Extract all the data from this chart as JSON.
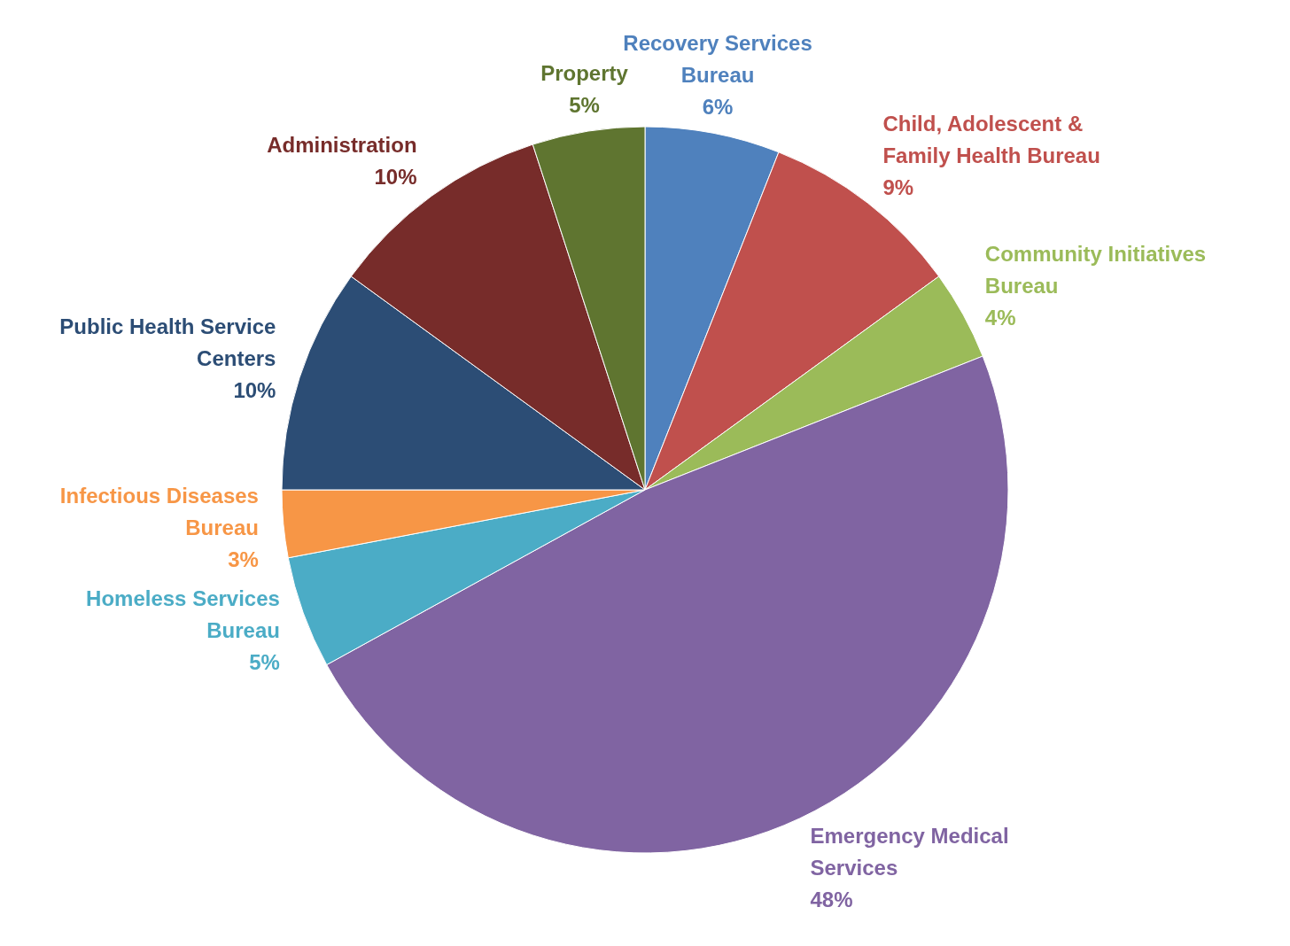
{
  "chart_data": {
    "type": "pie",
    "categories": [
      "Recovery Services Bureau",
      "Child, Adolescent & Family Health Bureau",
      "Community Initiatives Bureau",
      "Emergency Medical Services",
      "Homeless Services Bureau",
      "Infectious Diseases Bureau",
      "Public Health Service Centers",
      "Administration",
      "Property"
    ],
    "values": [
      6,
      9,
      4,
      48,
      5,
      3,
      10,
      10,
      5
    ],
    "value_labels": [
      "6%",
      "9%",
      "4%",
      "48%",
      "5%",
      "3%",
      "10%",
      "10%",
      "5%"
    ],
    "colors": [
      "#4f81bd",
      "#c0504d",
      "#9bbb59",
      "#8064a2",
      "#4bacc6",
      "#f79646",
      "#2c4d75",
      "#772c2a",
      "#5f7530"
    ]
  }
}
